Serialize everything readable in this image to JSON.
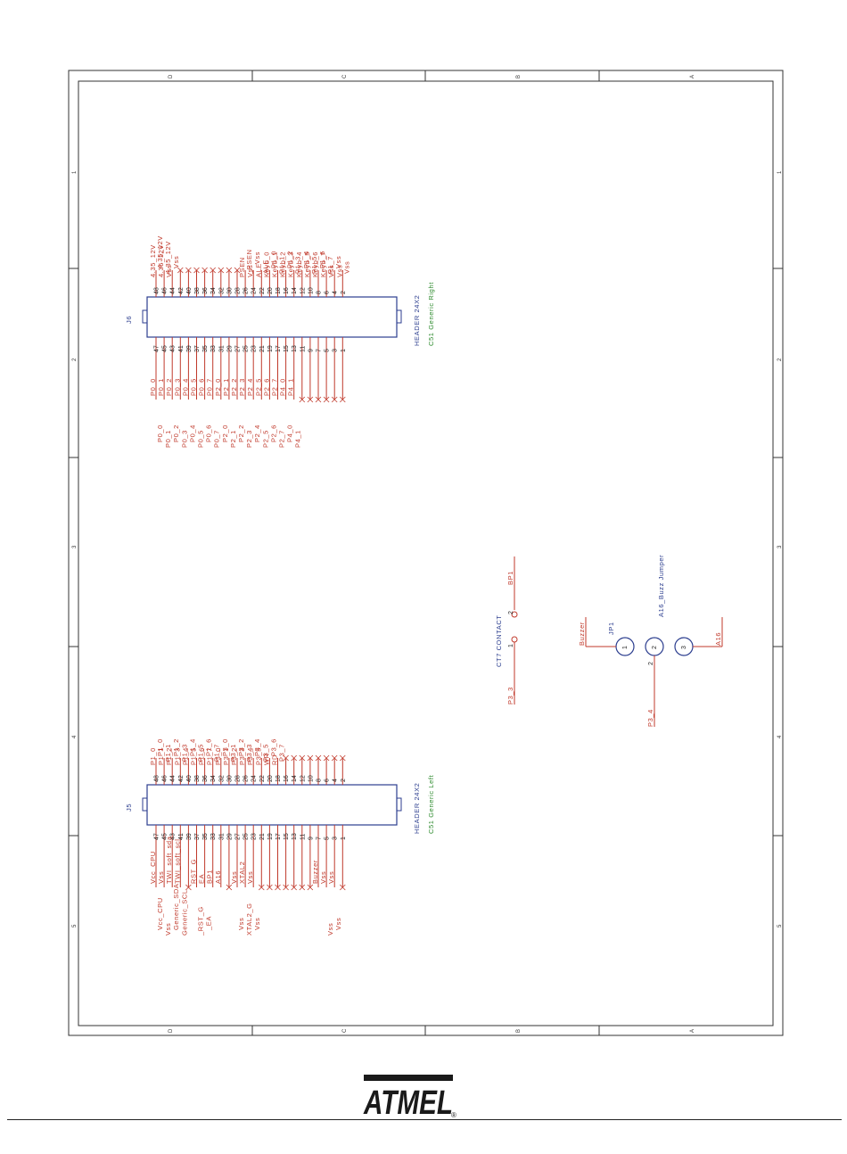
{
  "frame": {
    "zones_letters": [
      "D",
      "C",
      "B",
      "A"
    ],
    "zones_numbers": [
      "1",
      "2",
      "3",
      "4",
      "5"
    ]
  },
  "j6": {
    "ref": "J6",
    "value": "HEADER 24X2",
    "desc": "C51 Generic Right",
    "even_pins": [
      "48",
      "46",
      "44",
      "42",
      "40",
      "38",
      "36",
      "34",
      "32",
      "30",
      "28",
      "26",
      "24",
      "22",
      "20",
      "18",
      "16",
      "14",
      "12",
      "10",
      "8",
      "6",
      "4",
      "2"
    ],
    "odd_pins": [
      "47",
      "45",
      "43",
      "41",
      "39",
      "37",
      "35",
      "33",
      "31",
      "29",
      "27",
      "25",
      "23",
      "21",
      "19",
      "17",
      "15",
      "13",
      "11",
      "9",
      "7",
      "5",
      "3",
      "1"
    ],
    "even_labels": [
      "4.35_12V",
      "4.35_12V",
      "Vss",
      "",
      "",
      "",
      "",
      "",
      "",
      "",
      "",
      "PSEN",
      "Vss",
      "ALE",
      "Keyb_0",
      "Keyb_1",
      "Keyb_2",
      "Keyb_3",
      "Keyb_4",
      "Keyb_5",
      "Keyb_6",
      "Keyb_7",
      "Vss",
      "Vss"
    ],
    "even_net": [
      "4.35_12V",
      "4.35_12V",
      "Vss",
      "",
      "",
      "",
      "",
      "",
      "",
      "",
      "",
      "_PSEN",
      "_Vss",
      "ALE",
      "P1_0",
      "P1_1",
      "P1_2",
      "P1_3",
      "P1_4",
      "P1_5",
      "P1_6",
      "P1_7",
      "Vss",
      "Vss"
    ],
    "odd_labels": [
      "P0_0",
      "P0_1",
      "P0_2",
      "P0_3",
      "P0_4",
      "P0_5",
      "P0_6",
      "P0_7",
      "P2_0",
      "P2_1",
      "P2_2",
      "P2_3",
      "P2_4",
      "P2_5",
      "P2_6",
      "P2_7",
      "P4_0",
      "P4_1",
      "",
      "",
      "",
      "",
      "",
      ""
    ],
    "odd_net": [
      "P0_0",
      "P0_1",
      "P0_2",
      "P0_3",
      "P0_4",
      "P0_5",
      "P0_6",
      "P0_7",
      "P2_0",
      "P2_1",
      "P2_2",
      "P2_3",
      "P2_4",
      "P2_5",
      "P2_6",
      "P2_7",
      "P4_0",
      "P4_1",
      "",
      "",
      "",
      "",
      "",
      ""
    ]
  },
  "j5": {
    "ref": "J5",
    "value": "HEADER 24X2",
    "desc": "C51 Generic Left",
    "even_pins": [
      "48",
      "46",
      "44",
      "42",
      "40",
      "38",
      "36",
      "34",
      "32",
      "30",
      "28",
      "26",
      "24",
      "22",
      "20",
      "18",
      "16",
      "14",
      "12",
      "10",
      "8",
      "6",
      "4",
      "2"
    ],
    "odd_pins": [
      "47",
      "45",
      "43",
      "41",
      "39",
      "37",
      "35",
      "33",
      "31",
      "29",
      "27",
      "25",
      "23",
      "21",
      "19",
      "17",
      "15",
      "13",
      "11",
      "9",
      "7",
      "5",
      "3",
      "1"
    ],
    "even_labels": [
      "P1_0",
      "P1_1",
      "P1_2",
      "P1_3",
      "P1_4",
      "P1_5",
      "P1_6",
      "P1_7",
      "P3_0",
      "P3_1",
      "P3_2",
      "P3_3",
      "P3_4",
      "P3_5",
      "WR",
      "RD",
      "",
      "",
      "",
      "",
      "",
      "",
      "",
      ""
    ],
    "even_net": [
      "P1_0",
      "P1_1",
      "P1_2",
      "P1_3",
      "P1_4",
      "P1_5",
      "P1_6",
      "P1_7",
      "P3_0",
      "P3_1",
      "P3_2",
      "P3_3",
      "P3_4",
      "P3_5",
      "P3_6",
      "P3_7",
      "",
      "",
      "",
      "",
      "",
      "",
      "",
      ""
    ],
    "odd_labels": [
      "Vcc_CPU",
      "Vss",
      "TWI_soft_sda",
      "TWI_soft_scl",
      "",
      "RST_G",
      "EA",
      "BP1",
      "A16",
      "",
      "Vss",
      "XTAL2",
      "Vss",
      "",
      "",
      "",
      "",
      "",
      "",
      "",
      "Buzzer",
      "Vss",
      "Vss",
      ""
    ],
    "odd_net": [
      "Vcc_CPU",
      "Vss",
      "Generic_SDA",
      "Generic_SCL",
      "",
      "_RST_G",
      "_EA",
      "",
      "",
      "",
      "Vss",
      "XTAL2_G",
      "Vss",
      "",
      "",
      "",
      "",
      "",
      "",
      "",
      "",
      "Vss",
      "Vss",
      ""
    ]
  },
  "ct7": {
    "ref": "CT7 CONTACT",
    "pin1": "1",
    "pin2": "2",
    "net_top": "BP1",
    "net_bottom": "P3_3"
  },
  "jp1": {
    "ref": "JP1",
    "desc": "A16_Buzz Jumper",
    "pins": [
      "1",
      "2",
      "3"
    ],
    "net_left": "Buzzer",
    "net_right": "A16",
    "net_bottom": "P3_4",
    "pin_bottom": "2"
  },
  "logo": {
    "text": "ATMEL",
    "registered": "®"
  },
  "colors": {
    "net": "#c0392b",
    "component": "#2c3e8f",
    "description": "#2e8b2e",
    "frame": "#333333"
  }
}
